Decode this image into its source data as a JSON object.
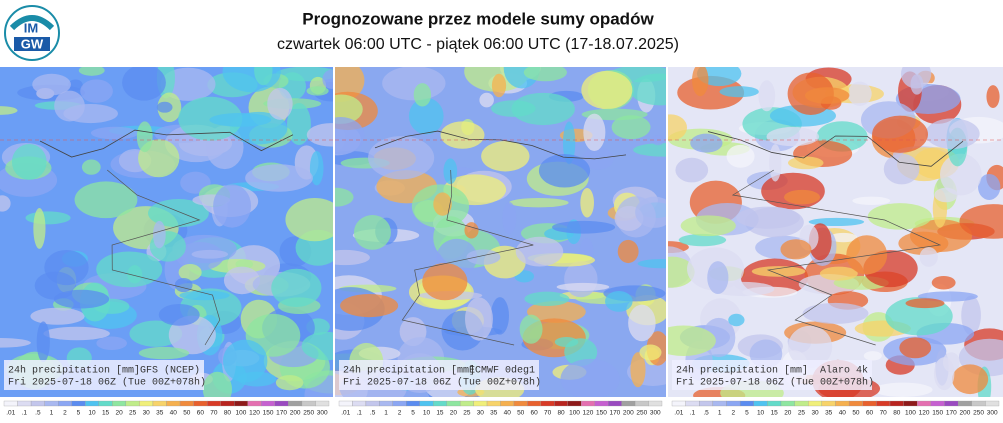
{
  "logo": {
    "top": "IM",
    "bottom": "GW"
  },
  "header": {
    "title": "Prognozowane przez modele sumy opadów",
    "subtitle": "czwartek 06:00 UTC - piątek 06:00 UTC (17-18.07.2025)"
  },
  "panels": [
    {
      "caption": "24h precipitation [mm]",
      "valid": "Fri 2025-07-18 06Z (Tue 00Z+078h)",
      "model": "GFS (NCEP)"
    },
    {
      "caption": "24h precipitation [mm]",
      "valid": "Fri 2025-07-18 06Z (Tue 00Z+078h)",
      "model": "ECMWF 0deg1"
    },
    {
      "caption": "24h precipitation [mm]",
      "valid": "Fri 2025-07-18 06Z (Tue 00Z+078h)",
      "model": "Alaro 4k"
    }
  ],
  "legend": {
    "labels": [
      ".01",
      ".1",
      ".5",
      "1",
      "2",
      "5",
      "10",
      "15",
      "20",
      "25",
      "30",
      "35",
      "40",
      "50",
      "60",
      "70",
      "80",
      "100",
      "120",
      "150",
      "170",
      "200",
      "250",
      "300"
    ]
  }
}
